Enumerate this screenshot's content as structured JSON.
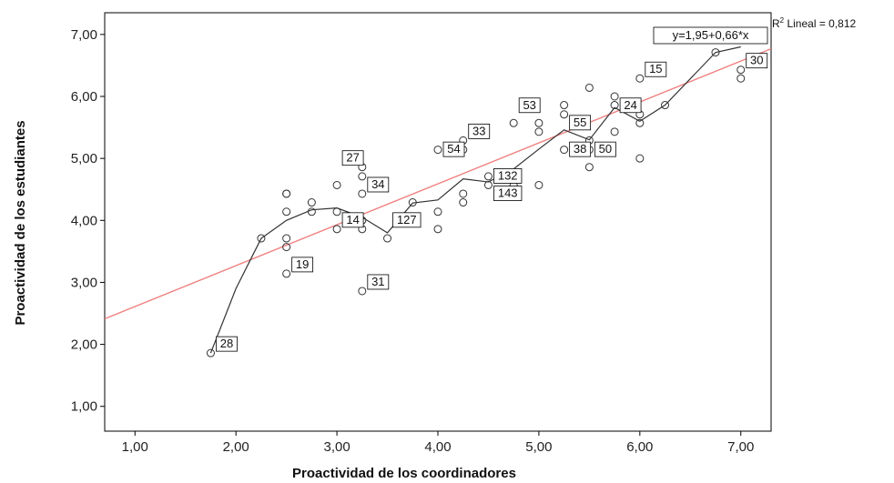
{
  "chart_data": {
    "type": "scatter",
    "xlabel": "Proactividad de los coordinadores",
    "ylabel": "Proactividad de los estudiantes",
    "xlim": [
      0.7,
      7.3
    ],
    "ylim": [
      0.6,
      7.35
    ],
    "xticks": [
      "1,00",
      "2,00",
      "3,00",
      "4,00",
      "5,00",
      "6,00",
      "7,00"
    ],
    "yticks": [
      "1,00",
      "2,00",
      "3,00",
      "4,00",
      "5,00",
      "6,00",
      "7,00"
    ],
    "grid": false,
    "points": [
      {
        "x": 1.75,
        "y": 1.86
      },
      {
        "x": 2.25,
        "y": 3.71
      },
      {
        "x": 2.5,
        "y": 3.14
      },
      {
        "x": 2.5,
        "y": 3.57
      },
      {
        "x": 2.5,
        "y": 3.71
      },
      {
        "x": 2.5,
        "y": 4.14
      },
      {
        "x": 2.5,
        "y": 4.43
      },
      {
        "x": 2.5,
        "y": 4.43
      },
      {
        "x": 2.75,
        "y": 4.14
      },
      {
        "x": 2.75,
        "y": 4.29
      },
      {
        "x": 3.0,
        "y": 3.86
      },
      {
        "x": 3.0,
        "y": 4.14
      },
      {
        "x": 3.0,
        "y": 4.57
      },
      {
        "x": 3.25,
        "y": 2.86
      },
      {
        "x": 3.25,
        "y": 3.86
      },
      {
        "x": 3.25,
        "y": 4.0
      },
      {
        "x": 3.25,
        "y": 4.43
      },
      {
        "x": 3.25,
        "y": 4.71
      },
      {
        "x": 3.25,
        "y": 4.86
      },
      {
        "x": 3.5,
        "y": 3.71
      },
      {
        "x": 3.75,
        "y": 4.29
      },
      {
        "x": 4.0,
        "y": 3.86
      },
      {
        "x": 4.0,
        "y": 4.14
      },
      {
        "x": 4.0,
        "y": 5.14
      },
      {
        "x": 4.25,
        "y": 4.29
      },
      {
        "x": 4.25,
        "y": 4.43
      },
      {
        "x": 4.25,
        "y": 5.14
      },
      {
        "x": 4.25,
        "y": 5.29
      },
      {
        "x": 4.5,
        "y": 4.57
      },
      {
        "x": 4.5,
        "y": 4.71
      },
      {
        "x": 4.75,
        "y": 4.57
      },
      {
        "x": 4.75,
        "y": 5.57
      },
      {
        "x": 5.0,
        "y": 4.57
      },
      {
        "x": 5.0,
        "y": 5.43
      },
      {
        "x": 5.0,
        "y": 5.57
      },
      {
        "x": 5.25,
        "y": 5.14
      },
      {
        "x": 5.25,
        "y": 5.71
      },
      {
        "x": 5.25,
        "y": 5.86
      },
      {
        "x": 5.5,
        "y": 4.86
      },
      {
        "x": 5.5,
        "y": 5.14
      },
      {
        "x": 5.5,
        "y": 5.29
      },
      {
        "x": 5.5,
        "y": 6.14
      },
      {
        "x": 5.75,
        "y": 5.43
      },
      {
        "x": 5.75,
        "y": 5.86
      },
      {
        "x": 5.75,
        "y": 6.0
      },
      {
        "x": 6.0,
        "y": 5.0
      },
      {
        "x": 6.0,
        "y": 5.57
      },
      {
        "x": 6.0,
        "y": 5.71
      },
      {
        "x": 6.0,
        "y": 6.29
      },
      {
        "x": 6.25,
        "y": 5.86
      },
      {
        "x": 6.75,
        "y": 6.71
      },
      {
        "x": 7.0,
        "y": 6.29
      },
      {
        "x": 7.0,
        "y": 6.43
      }
    ],
    "loess": [
      [
        1.75,
        1.86
      ],
      [
        2.0,
        2.9
      ],
      [
        2.25,
        3.71
      ],
      [
        2.5,
        4.0
      ],
      [
        2.75,
        4.17
      ],
      [
        3.0,
        4.2
      ],
      [
        3.25,
        4.05
      ],
      [
        3.5,
        3.8
      ],
      [
        3.75,
        4.28
      ],
      [
        4.0,
        4.33
      ],
      [
        4.25,
        4.67
      ],
      [
        4.5,
        4.62
      ],
      [
        4.75,
        4.83
      ],
      [
        5.0,
        5.15
      ],
      [
        5.25,
        5.46
      ],
      [
        5.5,
        5.3
      ],
      [
        5.75,
        5.82
      ],
      [
        6.0,
        5.6
      ],
      [
        6.25,
        5.86
      ],
      [
        6.75,
        6.71
      ],
      [
        7.0,
        6.8
      ]
    ],
    "fit_line": {
      "intercept": 1.95,
      "slope": 0.66,
      "equation": "y=1,95+0,66*x"
    },
    "r2_label": "R",
    "r2_sup": "2",
    "r2_text": " Lineal = 0,812",
    "point_labels": [
      {
        "text": "28",
        "x": 1.75,
        "y": 1.86
      },
      {
        "text": "19",
        "x": 2.5,
        "y": 3.14
      },
      {
        "text": "31",
        "x": 3.25,
        "y": 2.86
      },
      {
        "text": "27",
        "x": 3.0,
        "y": 4.86
      },
      {
        "text": "34",
        "x": 3.25,
        "y": 4.43
      },
      {
        "text": "14",
        "x": 3.0,
        "y": 3.86
      },
      {
        "text": "127",
        "x": 3.5,
        "y": 3.86
      },
      {
        "text": "54",
        "x": 4.0,
        "y": 5.0
      },
      {
        "text": "33",
        "x": 4.25,
        "y": 5.29
      },
      {
        "text": "132",
        "x": 4.5,
        "y": 4.57
      },
      {
        "text": "143",
        "x": 4.5,
        "y": 4.29
      },
      {
        "text": "53",
        "x": 4.75,
        "y": 5.71
      },
      {
        "text": "55",
        "x": 5.25,
        "y": 5.43
      },
      {
        "text": "38",
        "x": 5.25,
        "y": 5.0
      },
      {
        "text": "50",
        "x": 5.5,
        "y": 5.0
      },
      {
        "text": "24",
        "x": 5.75,
        "y": 5.71
      },
      {
        "text": "15",
        "x": 6.0,
        "y": 6.29
      },
      {
        "text": "30",
        "x": 7.0,
        "y": 6.43
      }
    ],
    "colors": {
      "fit": "#f08080",
      "loess": "#333333",
      "marker": "#333333",
      "frame": "#000000"
    }
  }
}
